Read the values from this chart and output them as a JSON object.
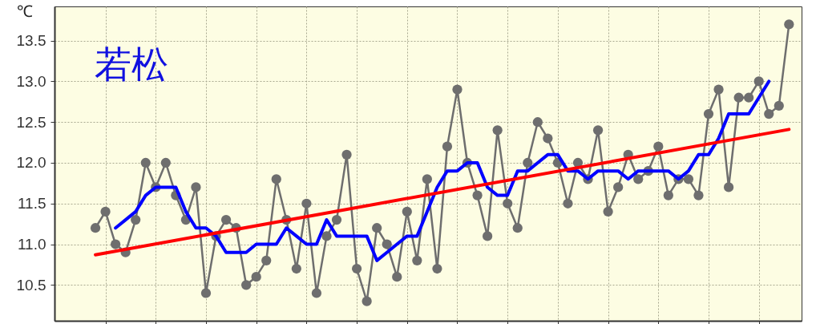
{
  "chart_data": {
    "type": "line",
    "ylabel": "℃",
    "annotations": [
      "若松"
    ],
    "categories": [
      null,
      null,
      null,
      null,
      null,
      null,
      null,
      null,
      null,
      null,
      null,
      null,
      null,
      null,
      null,
      null,
      null,
      null,
      null,
      null,
      null,
      null,
      null,
      null,
      null,
      null,
      null,
      null,
      null,
      null,
      null,
      null,
      null,
      null,
      null,
      null,
      null,
      null,
      null,
      null,
      null,
      null,
      null,
      null,
      null,
      null,
      null,
      null,
      null,
      null,
      null,
      null,
      null,
      null,
      null,
      null,
      null,
      null,
      null,
      null,
      null,
      null,
      null,
      null,
      null,
      null,
      null,
      null,
      null,
      null
    ],
    "ylim": [
      10.06,
      13.92
    ],
    "yticks": [
      {
        "value": 10.5,
        "label": "10.5"
      },
      {
        "value": 11,
        "label": "11.0"
      },
      {
        "value": 11.5,
        "label": "11.5"
      },
      {
        "value": 12,
        "label": "12.0"
      },
      {
        "value": 12.5,
        "label": "12.5"
      },
      {
        "value": 13,
        "label": "13.0"
      },
      {
        "value": 13.5,
        "label": "13.5"
      }
    ],
    "grid": true,
    "series": [
      {
        "color": "#6e6e6e",
        "marker": "circle",
        "values": [
          11.2,
          11.4,
          11.0,
          10.9,
          11.3,
          12.0,
          11.7,
          12.0,
          11.6,
          11.3,
          11.7,
          10.4,
          11.1,
          11.3,
          11.2,
          10.5,
          10.6,
          10.8,
          11.8,
          11.3,
          10.7,
          11.5,
          10.4,
          11.1,
          11.3,
          12.1,
          10.7,
          10.3,
          11.2,
          11.0,
          10.6,
          11.4,
          10.8,
          11.8,
          10.7,
          12.2,
          12.9,
          12.0,
          11.6,
          11.1,
          12.4,
          11.5,
          11.2,
          12.0,
          12.5,
          12.3,
          12.0,
          11.5,
          12.0,
          11.8,
          12.4,
          11.4,
          11.7,
          12.1,
          11.8,
          11.9,
          12.2,
          11.6,
          11.8,
          11.8,
          11.6,
          12.6,
          12.9,
          11.7,
          12.8,
          12.8,
          13.0,
          12.6,
          12.7,
          13.7
        ]
      },
      {
        "color": "#0000ff",
        "values": [
          null,
          null,
          11.2,
          11.3,
          11.4,
          11.6,
          11.7,
          11.7,
          11.7,
          11.4,
          11.2,
          11.2,
          11.1,
          10.9,
          10.9,
          10.9,
          11.0,
          11.0,
          11.0,
          11.2,
          11.1,
          11.0,
          11.0,
          11.3,
          11.1,
          11.1,
          11.1,
          11.1,
          10.8,
          10.9,
          11.0,
          11.1,
          11.1,
          11.4,
          11.7,
          11.9,
          11.9,
          12.0,
          12.0,
          11.7,
          11.6,
          11.6,
          11.9,
          11.9,
          12.0,
          12.1,
          12.1,
          11.9,
          11.9,
          11.8,
          11.9,
          11.9,
          11.9,
          11.8,
          11.9,
          11.9,
          11.9,
          11.9,
          11.8,
          11.9,
          12.1,
          12.1,
          12.3,
          12.6,
          12.6,
          12.6,
          12.8,
          13.0,
          null,
          null
        ]
      },
      {
        "color": "#ff0000",
        "values": [
          10.87,
          null,
          null,
          null,
          null,
          null,
          null,
          null,
          null,
          null,
          null,
          null,
          null,
          null,
          null,
          null,
          null,
          null,
          null,
          null,
          null,
          null,
          null,
          null,
          null,
          null,
          null,
          null,
          null,
          null,
          null,
          null,
          null,
          null,
          null,
          null,
          null,
          null,
          null,
          null,
          null,
          null,
          null,
          null,
          null,
          null,
          null,
          null,
          null,
          null,
          null,
          null,
          null,
          null,
          null,
          null,
          null,
          null,
          null,
          null,
          null,
          null,
          null,
          null,
          null,
          null,
          null,
          null,
          null,
          12.41
        ]
      }
    ]
  }
}
